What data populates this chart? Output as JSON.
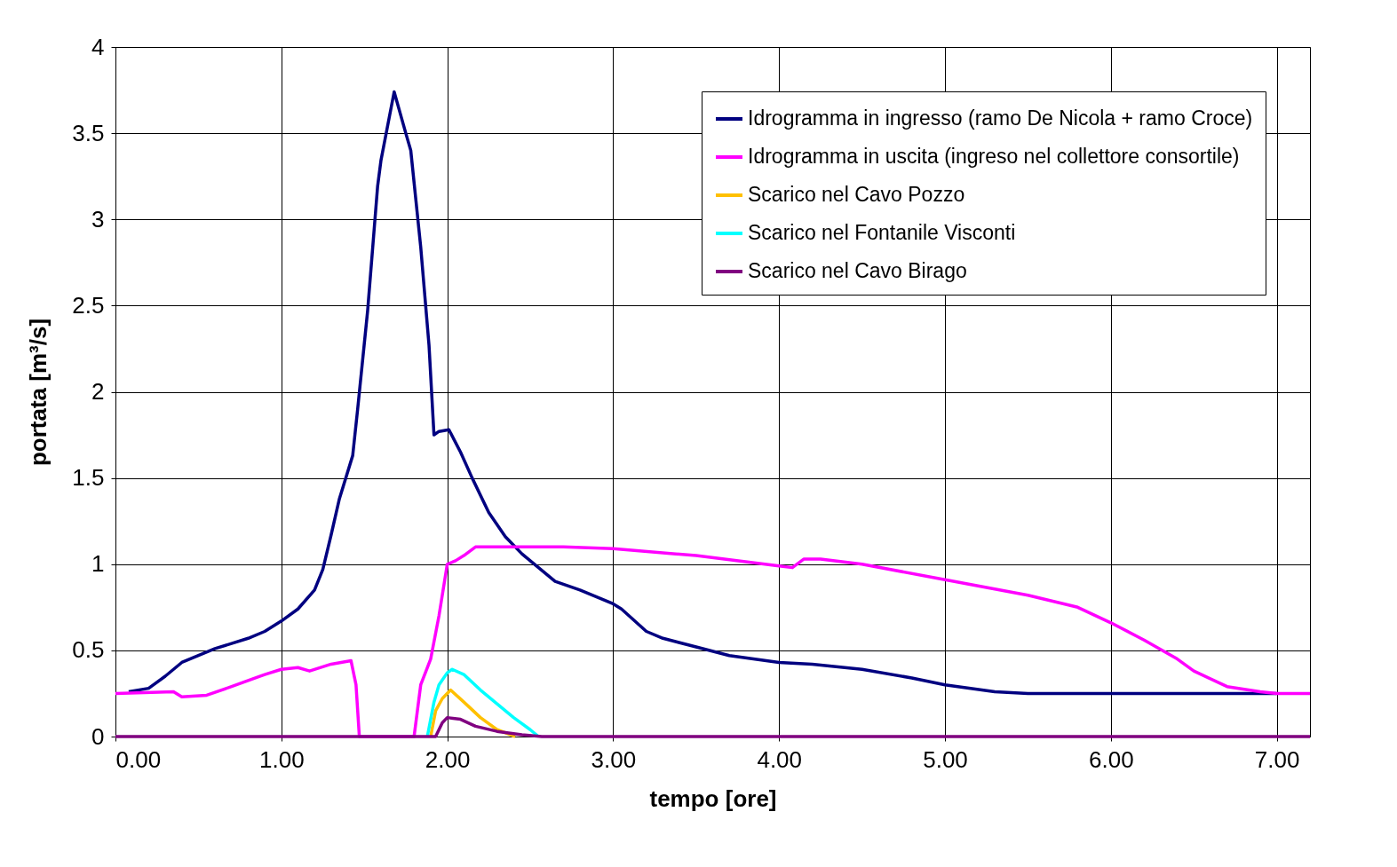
{
  "chart_data": {
    "type": "line",
    "xlabel": "tempo [ore]",
    "ylabel": "portata [m³/s]",
    "xlim": [
      0,
      7.2
    ],
    "ylim": [
      0,
      4
    ],
    "xticks": [
      {
        "value": 0,
        "label": "0.00"
      },
      {
        "value": 1,
        "label": "1.00"
      },
      {
        "value": 2,
        "label": "2.00"
      },
      {
        "value": 3,
        "label": "3.00"
      },
      {
        "value": 4,
        "label": "4.00"
      },
      {
        "value": 5,
        "label": "5.00"
      },
      {
        "value": 6,
        "label": "6.00"
      },
      {
        "value": 7,
        "label": "7.00"
      }
    ],
    "yticks": [
      0,
      0.5,
      1,
      1.5,
      2,
      2.5,
      3,
      3.5,
      4
    ],
    "grid": true,
    "legend": "top right",
    "marker": "none",
    "line_style": "solid",
    "series": [
      {
        "name": "Idrogramma in ingresso (ramo De Nicola + ramo Croce)",
        "color": "#000080",
        "x": [
          0.08,
          0.2,
          0.3,
          0.4,
          0.5,
          0.6,
          0.7,
          0.8,
          0.9,
          1.0,
          1.1,
          1.2,
          1.25,
          1.3,
          1.35,
          1.43,
          1.46,
          1.52,
          1.58,
          1.6,
          1.68,
          1.75,
          1.78,
          1.84,
          1.89,
          1.92,
          1.95,
          2.01,
          2.08,
          2.15,
          2.25,
          2.35,
          2.45,
          2.55,
          2.65,
          2.8,
          3.0,
          3.05,
          3.2,
          3.3,
          3.5,
          3.7,
          4.0,
          4.2,
          4.5,
          4.8,
          5.0,
          5.3,
          5.5,
          7.0
        ],
        "values": [
          0.26,
          0.28,
          0.35,
          0.43,
          0.47,
          0.51,
          0.54,
          0.57,
          0.61,
          0.67,
          0.74,
          0.85,
          0.97,
          1.17,
          1.38,
          1.63,
          1.9,
          2.47,
          3.19,
          3.34,
          3.74,
          3.5,
          3.4,
          2.84,
          2.27,
          1.75,
          1.77,
          1.78,
          1.65,
          1.5,
          1.3,
          1.16,
          1.06,
          0.98,
          0.9,
          0.85,
          0.77,
          0.74,
          0.61,
          0.57,
          0.52,
          0.47,
          0.43,
          0.42,
          0.39,
          0.34,
          0.3,
          0.26,
          0.25,
          0.25
        ]
      },
      {
        "name": "Idrogramma in uscita (ingreso nel collettore consortile)",
        "color": "#ff00ff",
        "x": [
          0,
          0.35,
          0.4,
          0.55,
          0.7,
          0.9,
          1.0,
          1.1,
          1.17,
          1.3,
          1.42,
          1.45,
          1.47,
          1.8,
          1.84,
          1.9,
          1.95,
          2.0,
          2.05,
          2.1,
          2.17,
          2.7,
          3.0,
          3.5,
          4.0,
          4.08,
          4.15,
          4.25,
          4.5,
          5.0,
          5.5,
          5.8,
          6.0,
          6.2,
          6.4,
          6.5,
          6.7,
          6.9,
          7.0,
          7.2
        ],
        "values": [
          0.25,
          0.26,
          0.23,
          0.24,
          0.29,
          0.36,
          0.39,
          0.4,
          0.38,
          0.42,
          0.44,
          0.3,
          0,
          0,
          0.3,
          0.45,
          0.7,
          1.0,
          1.02,
          1.05,
          1.1,
          1.1,
          1.09,
          1.05,
          0.99,
          0.98,
          1.03,
          1.03,
          1.0,
          0.91,
          0.82,
          0.75,
          0.66,
          0.56,
          0.45,
          0.38,
          0.29,
          0.26,
          0.25,
          0.25
        ]
      },
      {
        "name": "Scarico nel Cavo Pozzo",
        "color": "#ffc000",
        "x": [
          1.9,
          1.93,
          1.97,
          2.02,
          2.1,
          2.2,
          2.3,
          2.41
        ],
        "values": [
          0,
          0.15,
          0.22,
          0.27,
          0.2,
          0.11,
          0.04,
          0
        ]
      },
      {
        "name": "Scarico nel Fontanile Visconti",
        "color": "#00ffff",
        "x": [
          1.88,
          1.92,
          1.95,
          2.0,
          2.03,
          2.1,
          2.2,
          2.3,
          2.4,
          2.5,
          2.55
        ],
        "values": [
          0,
          0.2,
          0.3,
          0.37,
          0.39,
          0.36,
          0.27,
          0.19,
          0.11,
          0.04,
          0
        ]
      },
      {
        "name": "Scarico nel Cavo Birago",
        "color": "#800080",
        "x": [
          0,
          1.93,
          1.97,
          2.0,
          2.08,
          2.17,
          2.3,
          2.45,
          2.57,
          7.2
        ],
        "values": [
          0,
          0,
          0.08,
          0.11,
          0.1,
          0.06,
          0.03,
          0.01,
          0,
          0
        ]
      }
    ]
  }
}
